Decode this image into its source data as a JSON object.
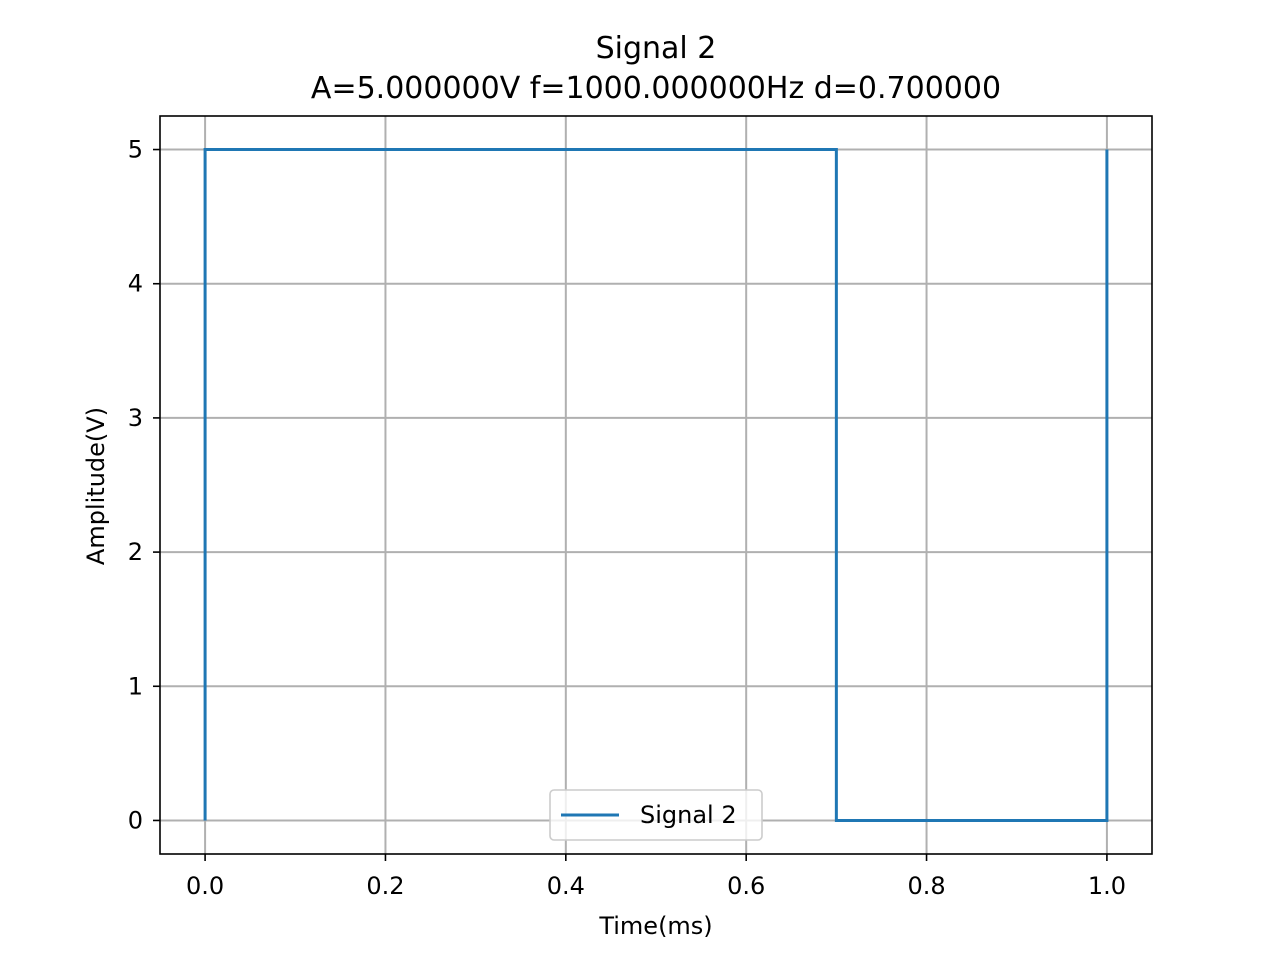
{
  "chart_data": {
    "type": "line",
    "title": "Signal 2",
    "subtitle": "A=5.000000V  f=1000.000000Hz  d=0.700000",
    "xlabel": "Time(ms)",
    "ylabel": "Amplitude(V)",
    "xlim": [
      -0.05,
      1.05
    ],
    "ylim": [
      -0.25,
      5.25
    ],
    "xticks": [
      0.0,
      0.2,
      0.4,
      0.6,
      0.8,
      1.0
    ],
    "xtick_labels": [
      "0.0",
      "0.2",
      "0.4",
      "0.6",
      "0.8",
      "1.0"
    ],
    "yticks": [
      0,
      1,
      2,
      3,
      4,
      5
    ],
    "ytick_labels": [
      "0",
      "1",
      "2",
      "3",
      "4",
      "5"
    ],
    "grid": true,
    "legend_position": "lower center",
    "series": [
      {
        "name": "Signal 2",
        "color": "#1f77b4",
        "x": [
          0.0,
          0.0,
          0.7,
          0.7,
          1.0,
          1.0
        ],
        "y": [
          0,
          5,
          5,
          0,
          0,
          5
        ]
      }
    ]
  }
}
